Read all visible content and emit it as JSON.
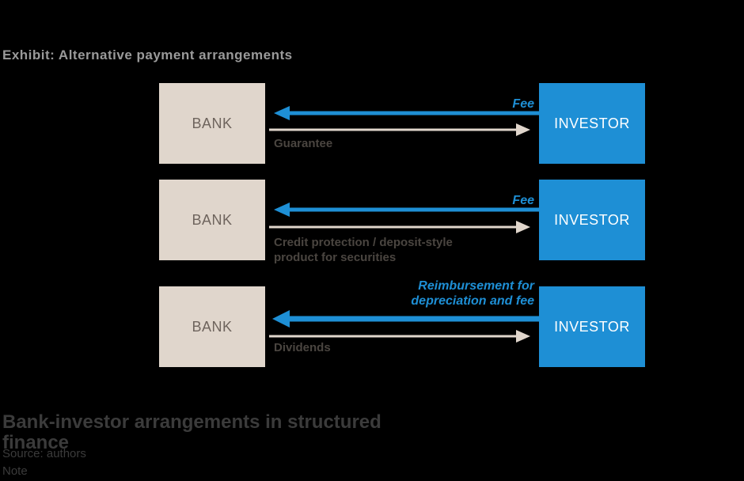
{
  "caption": "Exhibit: Alternative payment arrangements",
  "diagram": {
    "rows": [
      {
        "bank": "BANK",
        "investor": "INVESTOR",
        "to_bank_label": "Fee",
        "to_investor_label": "Guarantee"
      },
      {
        "bank": "BANK",
        "investor": "INVESTOR",
        "to_bank_label": "Fee",
        "to_investor_label": "Credit protection / deposit-style product for securities"
      },
      {
        "bank": "BANK",
        "investor": "INVESTOR",
        "to_bank_label": "Reimbursement for depreciation and fee",
        "to_investor_label": "Dividends"
      }
    ]
  },
  "footer": {
    "title": "Bank-investor arrangements in structured finance",
    "source": "Source: authors",
    "note": "Note"
  },
  "colors": {
    "bank_fill": "#e0d6cc",
    "investor_fill": "#1e8fd5",
    "arrow_blue": "#1e8fd5",
    "arrow_beige": "#e0d6cc"
  }
}
